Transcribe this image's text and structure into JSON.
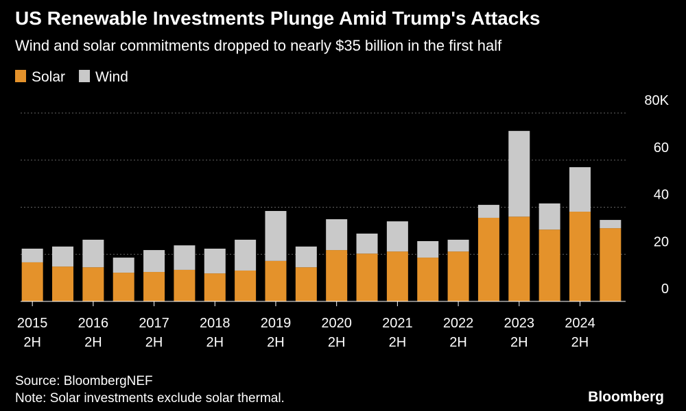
{
  "chart_data": {
    "type": "stacked-bar",
    "title": "US Renewable Investments Plunge Amid Trump's Attacks",
    "subtitle": "Wind and solar commitments dropped to nearly $35 billion in the first half",
    "categories": [
      "2015 2H",
      null,
      "2016 2H",
      null,
      "2017 2H",
      null,
      "2018 2H",
      null,
      "2019 2H",
      null,
      "2020 2H",
      null,
      "2021 2H",
      null,
      "2022 2H",
      null,
      "2023 2H",
      null,
      "2024 2H",
      null
    ],
    "series": [
      {
        "name": "Solar",
        "color": "#e4922b",
        "values": [
          16.6,
          14.8,
          14.5,
          12.2,
          12.5,
          13.4,
          11.9,
          13.1,
          17.2,
          14.5,
          21.8,
          20.3,
          21.2,
          18.6,
          21.2,
          35.5,
          36.0,
          30.5,
          38.1,
          31.1
        ]
      },
      {
        "name": "Wind",
        "color": "#c9c9c9",
        "values": [
          5.8,
          8.5,
          11.7,
          6.4,
          9.3,
          10.4,
          10.5,
          13.1,
          21.2,
          8.8,
          13.1,
          8.5,
          12.8,
          7.0,
          5.0,
          5.5,
          36.4,
          11.1,
          18.9,
          3.5
        ]
      }
    ],
    "ylim": [
      0,
      80
    ],
    "yticks": [
      0,
      20,
      40,
      60,
      {
        "value": 80,
        "label": "80K"
      }
    ],
    "grid": true,
    "legend": "top-left",
    "source": "Source: BloombergNEF",
    "note": "Note: Solar investments exclude solar thermal.",
    "brand": "Bloomberg"
  }
}
